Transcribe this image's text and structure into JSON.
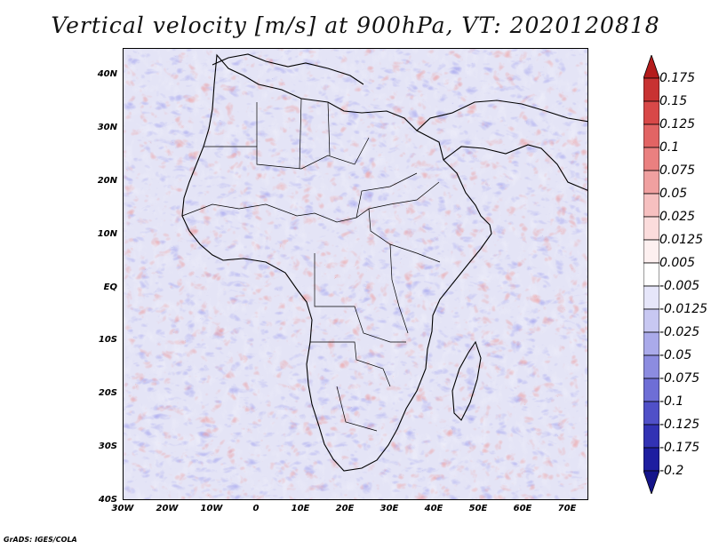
{
  "title": "Vertical velocity [m/s] at 900hPa, VT: 2020120818",
  "credit": "GrADS: IGES/COLA",
  "map": {
    "lon_range": [
      -30,
      75
    ],
    "lat_range": [
      -40,
      45
    ],
    "lat_labels": [
      "40N",
      "30N",
      "20N",
      "10N",
      "EQ",
      "10S",
      "20S",
      "30S",
      "40S"
    ],
    "lon_labels": [
      "30W",
      "20W",
      "10W",
      "0",
      "10E",
      "20E",
      "30E",
      "40E",
      "50E",
      "60E",
      "70E"
    ]
  },
  "colorbar": {
    "labels": [
      "0.175",
      "0.15",
      "0.125",
      "0.1",
      "0.075",
      "0.05",
      "0.025",
      "0.0125",
      "0.005",
      "-0.005",
      "-0.0125",
      "-0.025",
      "-0.05",
      "-0.075",
      "-0.1",
      "-0.125",
      "-0.175",
      "-0.2"
    ],
    "colors": [
      "#b41c1c",
      "#c83232",
      "#d84848",
      "#e26464",
      "#ea8080",
      "#f0a0a0",
      "#f6c0c0",
      "#fbdcdc",
      "#fdf0f0",
      "#ffffff",
      "#e6e6fa",
      "#c8c8f2",
      "#aaaaea",
      "#8c8ce0",
      "#6e6ed6",
      "#5050c8",
      "#3232b4",
      "#1e1ea0",
      "#14148a"
    ]
  }
}
